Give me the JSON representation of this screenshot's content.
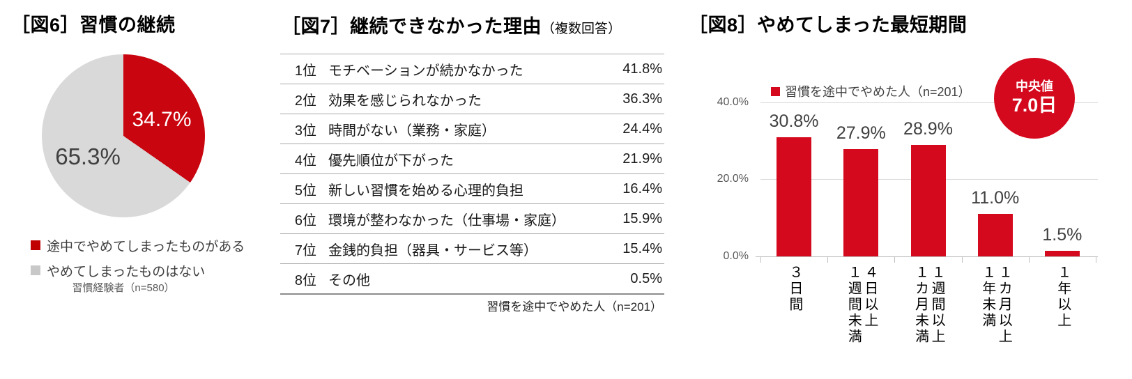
{
  "colors": {
    "pie_red": "#C9050F",
    "pie_gray": "#D9D9D9",
    "bar_red": "#D5091E",
    "legend_red": "#C00000",
    "legend_gray": "#C8C8C8",
    "grid": "#D9D9D9",
    "axis": "#BFBFBF",
    "rule": "#A9A9A9"
  },
  "fig6": {
    "title": "［図6］習慣の継続",
    "pie": {
      "slices": [
        {
          "label": "途中でやめてしまったものがある",
          "value": 34.7,
          "display": "34.7%"
        },
        {
          "label": "やめてしまったものはない",
          "value": 65.3,
          "display": "65.3%"
        }
      ]
    },
    "caption": "習慣経験者（n=580）"
  },
  "fig7": {
    "title": "［図7］継続できなかった理由",
    "title_note": "（複数回答）",
    "rows": [
      {
        "rank": "1位",
        "reason": "モチベーションが続かなかった",
        "value": "41.8%"
      },
      {
        "rank": "2位",
        "reason": "効果を感じられなかった",
        "value": "36.3%"
      },
      {
        "rank": "3位",
        "reason": "時間がない（業務・家庭）",
        "value": "24.4%"
      },
      {
        "rank": "4位",
        "reason": "優先順位が下がった",
        "value": "21.9%"
      },
      {
        "rank": "5位",
        "reason": "新しい習慣を始める心理的負担",
        "value": "16.4%"
      },
      {
        "rank": "6位",
        "reason": "環境が整わなかった（仕事場・家庭）",
        "value": "15.9%"
      },
      {
        "rank": "7位",
        "reason": "金銭的負担（器具・サービス等）",
        "value": "15.4%"
      },
      {
        "rank": "8位",
        "reason": "その他",
        "value": "0.5%"
      }
    ],
    "footnote": "習慣を途中でやめた人（n=201）"
  },
  "fig8": {
    "title": "［図8］やめてしまった最短期間",
    "legend": "習慣を途中でやめた人（n=201）",
    "median_badge": {
      "label": "中央値",
      "value": "7.0日"
    },
    "yticks": [
      {
        "label": "0.0%",
        "value": 0
      },
      {
        "label": "20.0%",
        "value": 20
      },
      {
        "label": "40.0%",
        "value": 40
      }
    ],
    "bars": [
      {
        "lines": [
          "３日間"
        ],
        "value": 30.8,
        "display": "30.8%"
      },
      {
        "lines": [
          "４日以上",
          "１週間未満"
        ],
        "value": 27.9,
        "display": "27.9%"
      },
      {
        "lines": [
          "１週間以上",
          "１カ月未満"
        ],
        "value": 28.9,
        "display": "28.9%"
      },
      {
        "lines": [
          "１カ月以上",
          "１年未満"
        ],
        "value": 11.0,
        "display": "11.0%"
      },
      {
        "lines": [
          "１年以上"
        ],
        "value": 1.5,
        "display": "1.5%"
      }
    ]
  },
  "chart_data": [
    {
      "type": "pie",
      "title": "［図6］習慣の継続",
      "labels": [
        "途中でやめてしまったものがある",
        "やめてしまったものはない"
      ],
      "values": [
        34.7,
        65.3
      ],
      "colors": [
        "#C9050F",
        "#D9D9D9"
      ],
      "start_angle_deg": 0,
      "direction": "clockwise",
      "legend_position": "bottom-left",
      "note": "習慣経験者（n=580）"
    },
    {
      "type": "table",
      "title": "［図7］継続できなかった理由（複数回答）",
      "rows": [
        [
          "1位",
          "モチベーションが続かなかった",
          "41.8%"
        ],
        [
          "2位",
          "効果を感じられなかった",
          "36.3%"
        ],
        [
          "3位",
          "時間がない（業務・家庭）",
          "24.4%"
        ],
        [
          "4位",
          "優先順位が下がった",
          "21.9%"
        ],
        [
          "5位",
          "新しい習慣を始める心理的負担",
          "16.4%"
        ],
        [
          "6位",
          "環境が整わなかった（仕事場・家庭）",
          "15.9%"
        ],
        [
          "7位",
          "金銭的負担（器具・サービス等）",
          "15.4%"
        ],
        [
          "8位",
          "その他",
          "0.5%"
        ]
      ],
      "note": "習慣を途中でやめた人（n=201）"
    },
    {
      "type": "bar",
      "title": "［図8］やめてしまった最短期間",
      "categories": [
        "３日間",
        "４日以上１週間未満",
        "１週間以上１カ月未満",
        "１カ月以上１年未満",
        "１年以上"
      ],
      "values": [
        30.8,
        27.9,
        28.9,
        11.0,
        1.5
      ],
      "bar_color": "#D5091E",
      "ylim": [
        0,
        45
      ],
      "yticks": [
        0,
        20,
        40
      ],
      "ytick_labels": [
        "0.0%",
        "20.0%",
        "40.0%"
      ],
      "grid": true,
      "legend": [
        "習慣を途中でやめた人（n=201）"
      ],
      "legend_position": "top",
      "annotation": "中央値 7.0日"
    }
  ]
}
